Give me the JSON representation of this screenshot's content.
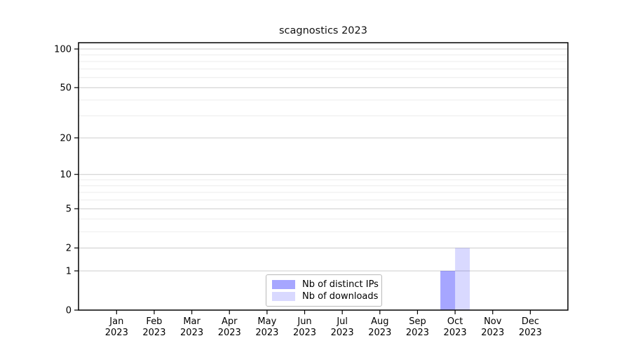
{
  "title": "scagnostics 2023",
  "chart_data": {
    "type": "bar",
    "title": "scagnostics 2023",
    "categories": [
      "Jan",
      "Feb",
      "Mar",
      "Apr",
      "May",
      "Jun",
      "Jul",
      "Aug",
      "Sep",
      "Oct",
      "Nov",
      "Dec"
    ],
    "x_year": "2023",
    "x_tick_labels": [
      "Jan 2023",
      "Feb 2023",
      "Mar 2023",
      "Apr 2023",
      "May 2023",
      "Jun 2023",
      "Jul 2023",
      "Aug 2023",
      "Sep 2023",
      "Oct 2023",
      "Nov 2023",
      "Dec 2023"
    ],
    "series": [
      {
        "name": "Nb of distinct IPs",
        "values": [
          0,
          0,
          0,
          0,
          0,
          0,
          0,
          0,
          0,
          1,
          0,
          0
        ],
        "color": "rgba(0,0,255,0.35)",
        "color_on_white": "#a6a6ff"
      },
      {
        "name": "Nb of downloads",
        "values": [
          0,
          0,
          0,
          0,
          0,
          0,
          0,
          0,
          0,
          2,
          0,
          0
        ],
        "color": "rgba(0,0,255,0.15)",
        "color_on_white": "#d9d9ff"
      }
    ],
    "xlabel": "",
    "ylabel": "",
    "ylim": [
      0,
      100
    ],
    "y_scale": "log1p",
    "y_ticks": [
      0,
      1,
      2,
      5,
      10,
      20,
      50,
      100
    ],
    "y_minor_gridlines": [
      3,
      4,
      6,
      7,
      8,
      9,
      30,
      40,
      60,
      70,
      80,
      90
    ],
    "grid": "on",
    "legend_position": "lower center inside axes"
  },
  "colors": {
    "axis_line": "#000000",
    "tick_label": "#000000",
    "grid_major": "#cccccc",
    "grid_minor": "#ececec",
    "legend_border": "#b9b9b9",
    "background": "#ffffff"
  }
}
